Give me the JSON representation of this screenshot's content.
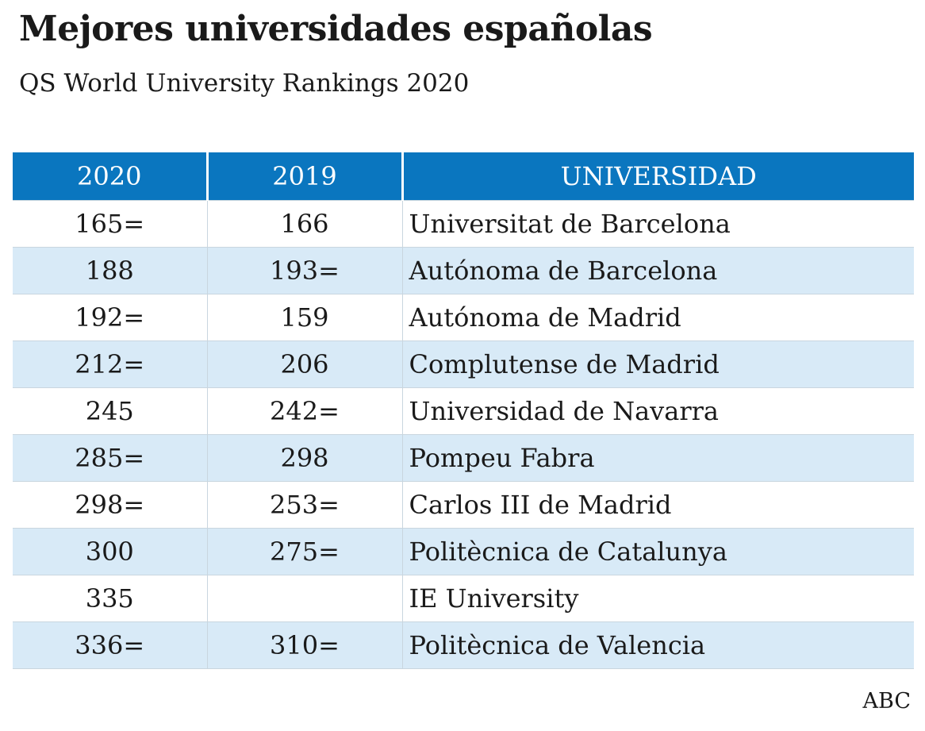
{
  "title": "Mejores universidades españolas",
  "subtitle": "QS World University Rankings 2020",
  "table": {
    "headers": [
      "2020",
      "2019",
      "UNIVERSIDAD"
    ],
    "header_color": "#0a76bf",
    "stripe_color": "#d8eaf7",
    "rows": [
      [
        "165=",
        "166",
        "Universitat de Barcelona"
      ],
      [
        "188",
        "193=",
        "Autónoma de Barcelona"
      ],
      [
        "192=",
        "159",
        "Autónoma de Madrid"
      ],
      [
        "212=",
        "206",
        "Complutense de Madrid"
      ],
      [
        "245",
        "242=",
        "Universidad de Navarra"
      ],
      [
        "285=",
        "298",
        "Pompeu Fabra"
      ],
      [
        "298=",
        "253=",
        "Carlos III de Madrid"
      ],
      [
        "300",
        "275=",
        "Politècnica de Catalunya"
      ],
      [
        "335",
        "",
        "IE University"
      ],
      [
        "336=",
        "310=",
        "Politècnica de Valencia"
      ]
    ]
  },
  "source": "ABC"
}
